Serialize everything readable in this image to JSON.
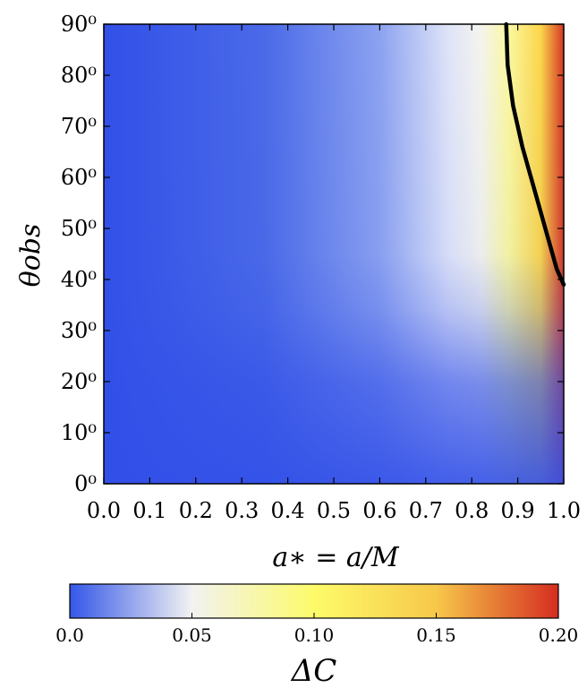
{
  "chart_data": {
    "type": "heatmap",
    "x": {
      "label": "a∗ = a/M",
      "range": [
        0.0,
        1.0
      ],
      "ticks": [
        "0.0",
        "0.1",
        "0.2",
        "0.3",
        "0.4",
        "0.5",
        "0.6",
        "0.7",
        "0.8",
        "0.9",
        "1.0"
      ]
    },
    "y": {
      "label": "θobs",
      "range": [
        0,
        90
      ],
      "ticks": [
        "0⁰",
        "10⁰",
        "20⁰",
        "30⁰",
        "40⁰",
        "50⁰",
        "60⁰",
        "70⁰",
        "80⁰",
        "90⁰"
      ]
    },
    "colorbar": {
      "label": "ΔC",
      "range": [
        0.0,
        0.2
      ],
      "ticks": [
        "0.0",
        "0.05",
        "0.10",
        "0.15",
        "0.20"
      ],
      "tick_values": [
        0.0,
        0.05,
        0.1,
        0.15,
        0.2
      ],
      "colors": [
        "#3457e8",
        "#f2f2f2",
        "#fdfb6a",
        "#f7c84a",
        "#d52d20"
      ]
    },
    "contour": {
      "level": 0.1,
      "points": [
        [
          0.875,
          90
        ],
        [
          0.878,
          82
        ],
        [
          0.89,
          74
        ],
        [
          0.91,
          66
        ],
        [
          0.935,
          58
        ],
        [
          0.96,
          50
        ],
        [
          0.985,
          42
        ],
        [
          1.0,
          39
        ]
      ]
    },
    "grid": false
  }
}
